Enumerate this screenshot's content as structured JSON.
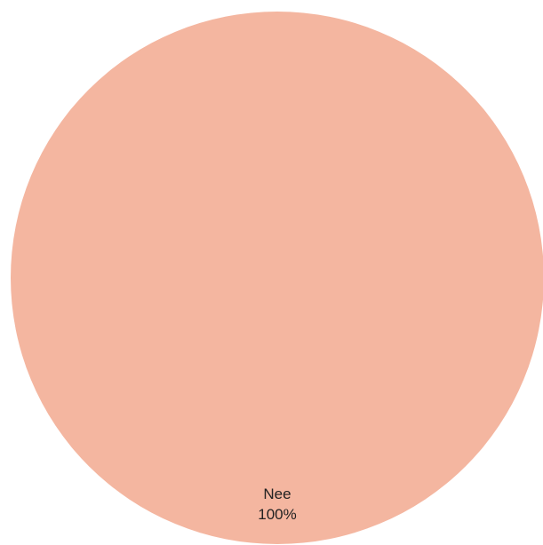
{
  "chart_data": {
    "type": "pie",
    "title": "",
    "slices": [
      {
        "label": "Nee",
        "value": 100,
        "percent_label": "100%",
        "color": "#F4B6A0"
      }
    ],
    "legend": "none"
  }
}
